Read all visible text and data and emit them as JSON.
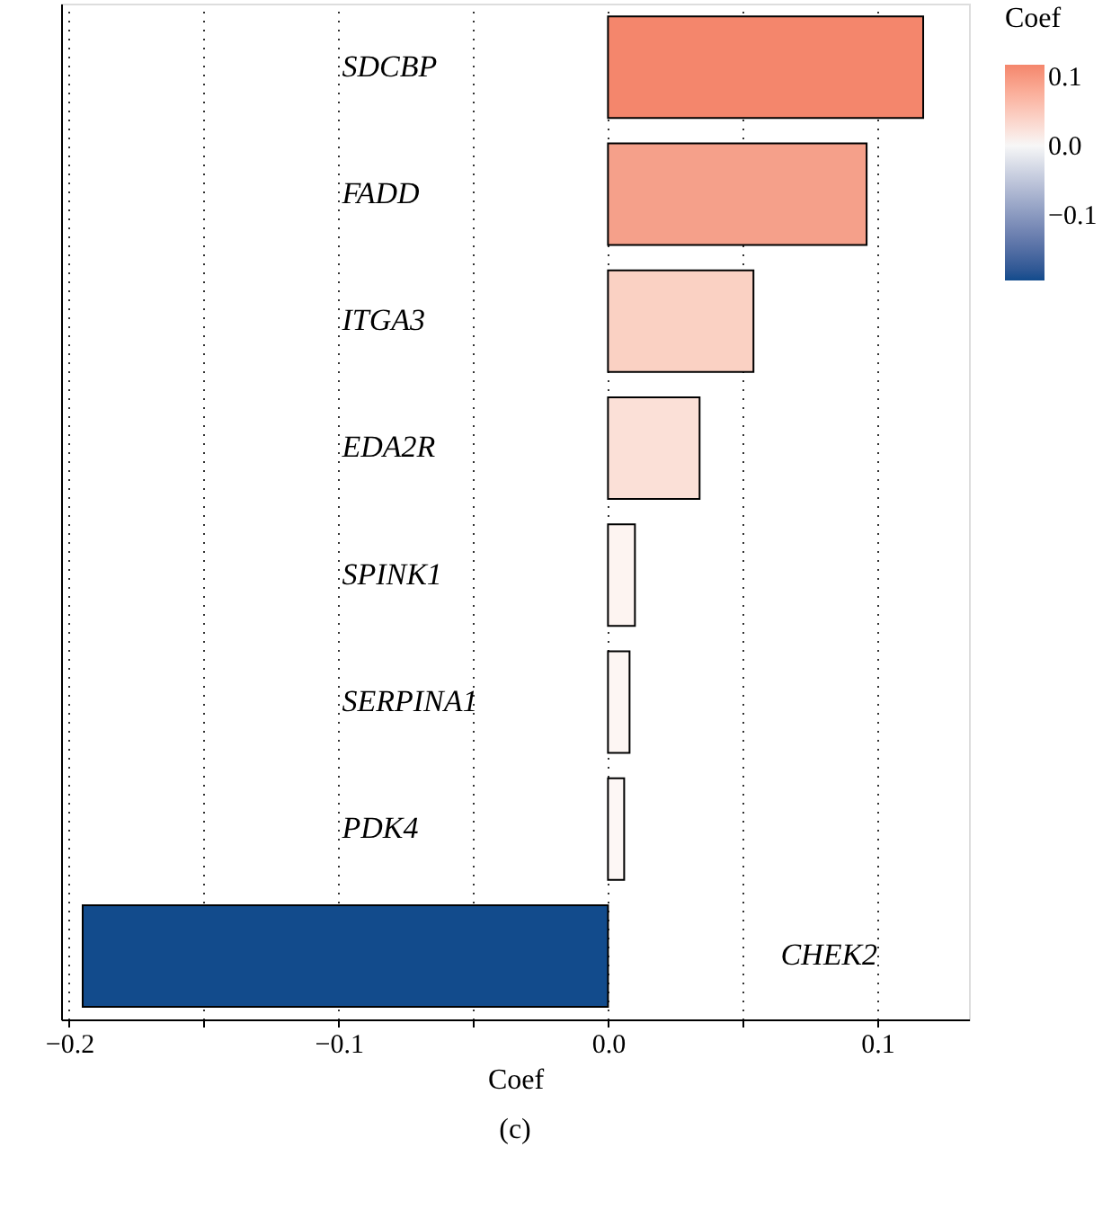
{
  "chart_data": {
    "type": "bar",
    "orientation": "horizontal",
    "xlabel": "Coef",
    "clabel": "Coef",
    "categories": [
      "SDCBP",
      "FADD",
      "ITGA3",
      "EDA2R",
      "SPINK1",
      "SERPINA1",
      "PDK4",
      "CHEK2"
    ],
    "values": [
      0.117,
      0.096,
      0.054,
      0.034,
      0.01,
      0.008,
      0.006,
      -0.195
    ],
    "colors": [
      "#f4866c",
      "#f5a08a",
      "#fad1c3",
      "#fbe0d7",
      "#fdf4f1",
      "#fdf6f3",
      "#fdf7f5",
      "#124b8c"
    ],
    "xlim": [
      -0.203,
      0.134
    ],
    "xticks": [
      {
        "value": -0.2,
        "label": "−0.2"
      },
      {
        "value": -0.15,
        "label": null
      },
      {
        "value": -0.1,
        "label": "−0.1"
      },
      {
        "value": -0.05,
        "label": null
      },
      {
        "value": 0.0,
        "label": "0.0"
      },
      {
        "value": 0.05,
        "label": null
      },
      {
        "value": 0.1,
        "label": "0.1"
      }
    ],
    "clim": [
      -0.195,
      0.117
    ],
    "cticks": [
      {
        "value": 0.1,
        "label": "0.1"
      },
      {
        "value": 0.0,
        "label": "0.0"
      },
      {
        "value": -0.1,
        "label": "−0.1"
      }
    ],
    "grid": "x",
    "tick_labels": "x",
    "annotations": [
      "(c)"
    ]
  }
}
